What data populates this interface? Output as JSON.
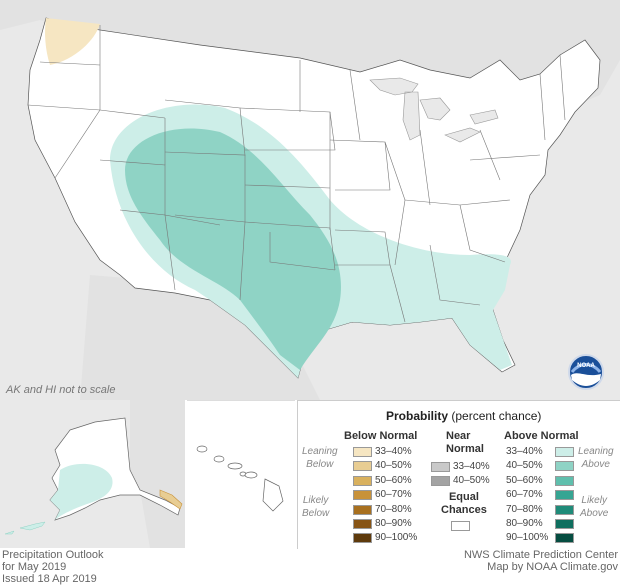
{
  "map": {
    "scale_note": "AK and HI not to scale",
    "logo_text": "NOAA",
    "colors": {
      "ocean": "#e9e9e9",
      "land": "#ffffff",
      "above_33_40": "#cdeee8",
      "above_40_50": "#8fd3c5",
      "below_33_40": "#f6e6c2",
      "below_40_50": "#e8cd93"
    }
  },
  "legend": {
    "title": "Probability",
    "subtitle": "(percent chance)",
    "below": {
      "header": "Below Normal",
      "leaning_label": "Leaning\nBelow",
      "likely_label": "Likely\nBelow",
      "ranges": [
        "33–40%",
        "40–50%",
        "50–60%",
        "60–70%",
        "70–80%",
        "80–90%",
        "90–100%"
      ],
      "colors": [
        "#f6e6c2",
        "#e8cd93",
        "#d9b15e",
        "#c8923a",
        "#a8701f",
        "#875415",
        "#5e3a0c"
      ]
    },
    "near": {
      "header": "Near\nNormal",
      "ranges": [
        "33–40%",
        "40–50%"
      ],
      "colors": [
        "#c9c9c9",
        "#a3a3a3"
      ]
    },
    "equal": {
      "header": "Equal\nChances",
      "color": "#ffffff"
    },
    "above": {
      "header": "Above Normal",
      "leaning_label": "Leaning\nAbove",
      "likely_label": "Likely\nAbove",
      "ranges": [
        "33–40%",
        "40–50%",
        "50–60%",
        "60–70%",
        "70–80%",
        "80–90%",
        "90–100%"
      ],
      "colors": [
        "#cdeee8",
        "#8fd3c5",
        "#5fbfad",
        "#36a593",
        "#1f8b79",
        "#0f6f5f",
        "#064d41"
      ]
    }
  },
  "footer": {
    "left_lines": [
      "Precipitation Outlook",
      "for May 2019",
      "Issued 18 Apr 2019"
    ],
    "right_lines": [
      "NWS Climate Prediction Center",
      "Map by NOAA Climate.gov"
    ]
  }
}
